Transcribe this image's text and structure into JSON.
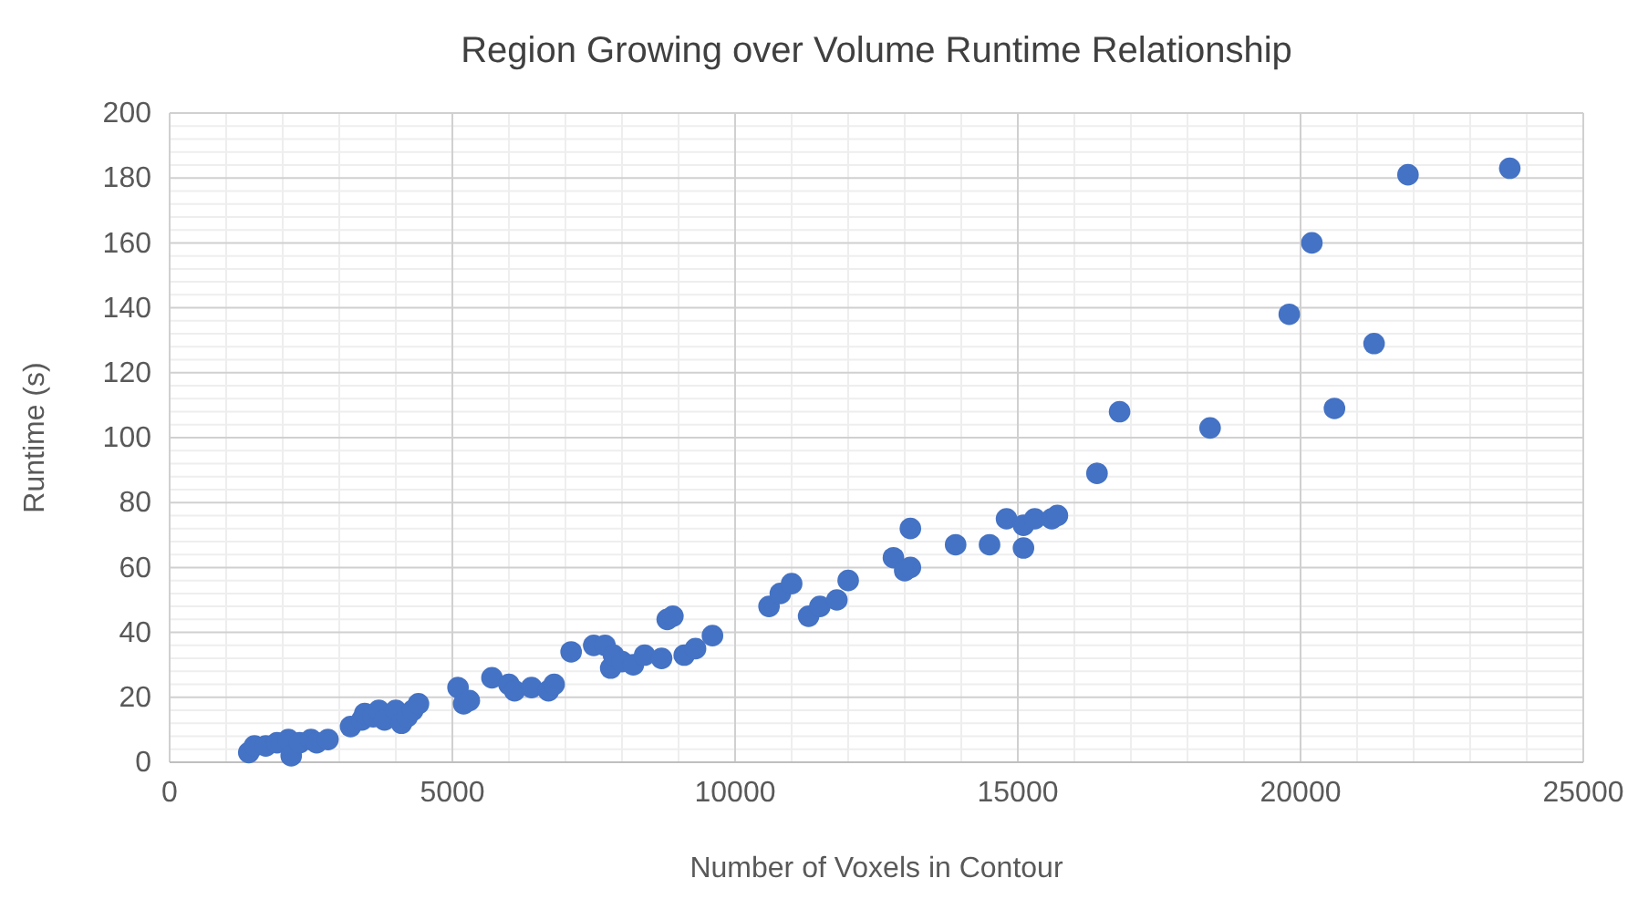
{
  "chart_data": {
    "type": "scatter",
    "title": "Region Growing over Volume Runtime Relationship",
    "xlabel": "Number of Voxels in Contour",
    "ylabel": "Runtime (s)",
    "xlim": [
      0,
      25000
    ],
    "xticks": [
      0,
      5000,
      10000,
      15000,
      20000,
      25000
    ],
    "ylim": [
      0,
      200
    ],
    "yticks": [
      0,
      20,
      40,
      60,
      80,
      100,
      120,
      140,
      160,
      180,
      200
    ],
    "grid": true,
    "marker": "circle",
    "series": [
      {
        "color": "#4472c4",
        "x": [
          1400,
          1500,
          1700,
          1900,
          2100,
          2150,
          2300,
          2500,
          2600,
          2800,
          3200,
          3400,
          3450,
          3600,
          3700,
          3800,
          4000,
          4100,
          4200,
          4300,
          4400,
          5100,
          5200,
          5300,
          5700,
          6000,
          6100,
          6400,
          6700,
          6800,
          7100,
          7500,
          7700,
          7800,
          7850,
          8000,
          8200,
          8400,
          8700,
          8800,
          8900,
          9100,
          9300,
          9600,
          10600,
          10800,
          11000,
          11300,
          11500,
          11800,
          12000,
          12800,
          13000,
          13100,
          13100,
          13900,
          14500,
          14800,
          15100,
          15100,
          15300,
          15600,
          15700,
          16400,
          16800,
          18400,
          19800,
          20200,
          20600,
          21300,
          21900,
          23700
        ],
        "values": [
          3,
          5,
          5,
          6,
          7,
          2,
          6,
          7,
          6,
          7,
          11,
          13,
          15,
          14,
          16,
          13,
          16,
          12,
          14,
          16,
          18,
          23,
          18,
          19,
          26,
          24,
          22,
          23,
          22,
          24,
          34,
          36,
          36,
          29,
          33,
          31,
          30,
          33,
          32,
          44,
          45,
          33,
          35,
          39,
          48,
          52,
          55,
          45,
          48,
          50,
          56,
          63,
          59,
          60,
          72,
          67,
          67,
          75,
          73,
          66,
          75,
          75,
          76,
          89,
          108,
          103,
          138,
          160,
          109,
          129,
          181,
          183
        ]
      }
    ]
  }
}
